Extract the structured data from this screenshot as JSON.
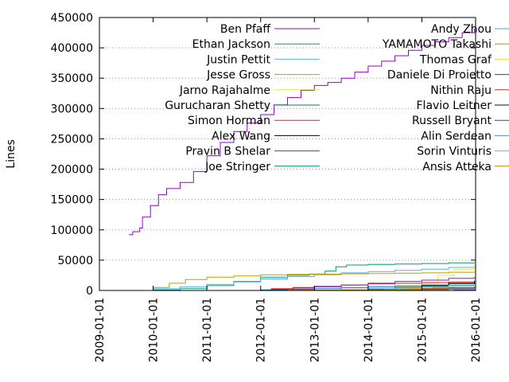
{
  "chart_data": {
    "type": "line",
    "title": "",
    "xlabel": "",
    "ylabel": "Lines",
    "xlim": [
      2009.0,
      2016.0
    ],
    "ylim": [
      0,
      450000
    ],
    "x_ticks": [
      "2009-01-01",
      "2010-01-01",
      "2011-01-01",
      "2012-01-01",
      "2013-01-01",
      "2014-01-01",
      "2015-01-01",
      "2016-01-01"
    ],
    "y_ticks": [
      0,
      50000,
      100000,
      150000,
      200000,
      250000,
      300000,
      350000,
      400000,
      450000
    ],
    "y_tick_labels": [
      "0",
      "50000",
      "100000",
      "150000",
      "200000",
      "250000",
      "300000",
      "350000",
      "400000",
      "450000"
    ],
    "grid": "horizontal dotted",
    "legend_position": "top, two columns",
    "series": [
      {
        "name": "Ben Pfaff",
        "color": "#9400d3",
        "x": [
          2009.55,
          2009.62,
          2009.75,
          2009.8,
          2009.95,
          2010.1,
          2010.25,
          2010.5,
          2010.75,
          2011.0,
          2011.25,
          2011.5,
          2011.75,
          2012.0,
          2012.25,
          2012.5,
          2012.75,
          2013.0,
          2013.25,
          2013.5,
          2013.75,
          2014.0,
          2014.25,
          2014.5,
          2014.75,
          2015.0,
          2015.25,
          2015.5,
          2015.75,
          2015.98
        ],
        "y": [
          92000,
          97000,
          103000,
          121000,
          140000,
          158000,
          168000,
          178000,
          196000,
          222000,
          244000,
          262000,
          276000,
          290000,
          306000,
          318000,
          330000,
          338000,
          343000,
          350000,
          360000,
          370000,
          378000,
          387000,
          396000,
          404000,
          410000,
          417000,
          425000,
          432000
        ]
      },
      {
        "name": "Ethan Jackson",
        "color": "#009e73",
        "x": [
          2009.5,
          2010.0,
          2010.5,
          2011.0,
          2011.5,
          2012.0,
          2012.5,
          2012.9,
          2013.2,
          2013.4,
          2013.6,
          2014.0,
          2014.5,
          2015.0,
          2015.5,
          2015.98
        ],
        "y": [
          0,
          1000,
          3000,
          8000,
          15000,
          22000,
          25000,
          27000,
          32000,
          39000,
          42000,
          43000,
          43500,
          44500,
          45500,
          46000
        ]
      },
      {
        "name": "Justin Pettit",
        "color": "#56b4e9",
        "x": [
          2009.5,
          2010.0,
          2010.5,
          2011.0,
          2011.5,
          2012.0,
          2012.5,
          2013.0,
          2013.5,
          2014.0,
          2014.5,
          2015.0,
          2015.5,
          2015.98
        ],
        "y": [
          0,
          3000,
          6000,
          10000,
          14000,
          19000,
          23000,
          26000,
          29000,
          31000,
          33000,
          35000,
          38000,
          40000
        ]
      },
      {
        "name": "Jesse Gross",
        "color": "#b8a000",
        "x": [
          2009.6,
          2010.0,
          2010.3,
          2010.6,
          2011.0,
          2011.5,
          2012.0,
          2012.5,
          2013.0,
          2013.5,
          2014.0,
          2014.5,
          2015.0,
          2015.5,
          2015.98
        ],
        "y": [
          0,
          5000,
          12000,
          18000,
          22000,
          24000,
          26000,
          26500,
          27000,
          27500,
          28000,
          28500,
          29000,
          30000,
          31000
        ]
      },
      {
        "name": "Jarno Rajahalme",
        "color": "#f0e442",
        "x": [
          2013.8,
          2014.0,
          2014.5,
          2015.0,
          2015.3,
          2015.6,
          2015.98
        ],
        "y": [
          0,
          2000,
          6000,
          12000,
          25000,
          35000,
          42000
        ]
      },
      {
        "name": "Gurucharan Shetty",
        "color": "#0072b2",
        "x": [
          2011.5,
          2012.0,
          2012.5,
          2013.0,
          2013.5,
          2014.0,
          2014.5,
          2015.0,
          2015.5,
          2015.98
        ],
        "y": [
          0,
          1000,
          2000,
          3000,
          4500,
          6000,
          7500,
          9000,
          11000,
          12000
        ]
      },
      {
        "name": "Simon Horman",
        "color": "#e51e10",
        "x": [
          2011.8,
          2012.2,
          2012.6,
          2013.0,
          2013.5,
          2014.0,
          2014.5,
          2015.0,
          2015.5,
          2015.98
        ],
        "y": [
          0,
          3000,
          5000,
          7000,
          9000,
          11000,
          12000,
          13000,
          14000,
          15000
        ]
      },
      {
        "name": "Alex Wang",
        "color": "#000000",
        "x": [
          2013.5,
          2014.0,
          2014.5,
          2015.0,
          2015.5,
          2015.98
        ],
        "y": [
          0,
          2000,
          5000,
          8000,
          12000,
          16000
        ]
      },
      {
        "name": "Pravin B Shelar",
        "color": "#8b1fb0",
        "x": [
          2011.8,
          2012.2,
          2012.6,
          2013.0,
          2013.5,
          2014.0,
          2014.5,
          2015.0,
          2015.5,
          2015.98
        ],
        "y": [
          0,
          2000,
          4000,
          6000,
          9000,
          12000,
          15000,
          17000,
          20000,
          22000
        ]
      },
      {
        "name": "Joe Stringer",
        "color": "#00876c",
        "x": [
          2013.0,
          2013.5,
          2014.0,
          2014.5,
          2015.0,
          2015.5,
          2015.98
        ],
        "y": [
          0,
          1000,
          2500,
          4000,
          6000,
          8000,
          10000
        ]
      },
      {
        "name": "Andy Zhou",
        "color": "#4aa3df",
        "x": [
          2013.2,
          2013.6,
          2014.0,
          2014.5,
          2015.0,
          2015.5,
          2015.98
        ],
        "y": [
          0,
          1000,
          3000,
          5000,
          7000,
          8500,
          9500
        ]
      },
      {
        "name": "YAMAMOTO Takashi",
        "color": "#c88a00",
        "x": [
          2013.9,
          2014.3,
          2014.8,
          2015.2,
          2015.6,
          2015.98
        ],
        "y": [
          0,
          1500,
          3500,
          5000,
          6500,
          7500
        ]
      },
      {
        "name": "Thomas Graf",
        "color": "#ece13a",
        "x": [
          2014.3,
          2014.7,
          2015.0,
          2015.5,
          2015.98
        ],
        "y": [
          0,
          2000,
          4000,
          7000,
          9000
        ]
      },
      {
        "name": "Daniele Di Proietto",
        "color": "#005a9c",
        "x": [
          2014.2,
          2014.6,
          2015.0,
          2015.5,
          2015.98
        ],
        "y": [
          0,
          1500,
          3000,
          4500,
          6000
        ]
      },
      {
        "name": "Nithin Raju",
        "color": "#d7261e",
        "x": [
          2014.0,
          2014.5,
          2015.0,
          2015.5,
          2015.98
        ],
        "y": [
          0,
          1500,
          3000,
          4000,
          5000
        ]
      },
      {
        "name": "Flavio Leitner",
        "color": "#111111",
        "x": [
          2013.5,
          2014.0,
          2014.5,
          2015.0,
          2015.5,
          2015.98
        ],
        "y": [
          0,
          500,
          1200,
          2000,
          2600,
          3000
        ]
      },
      {
        "name": "Russell Bryant",
        "color": "#7a1fa2",
        "x": [
          2015.3,
          2015.6,
          2015.98
        ],
        "y": [
          0,
          1500,
          3500
        ]
      },
      {
        "name": "Alin Serdean",
        "color": "#3d9ccf",
        "x": [
          2014.5,
          2015.0,
          2015.5,
          2015.98
        ],
        "y": [
          0,
          1500,
          3000,
          4000
        ]
      },
      {
        "name": "Sorin Vinturis",
        "color": "#5fb7e8",
        "x": [
          2014.6,
          2015.0,
          2015.5,
          2015.98
        ],
        "y": [
          0,
          1000,
          2000,
          2800
        ]
      },
      {
        "name": "Ansis Atteka",
        "color": "#b88300",
        "x": [
          2011.5,
          2012.5,
          2013.5,
          2014.5,
          2015.5,
          2015.98
        ],
        "y": [
          0,
          500,
          1000,
          1500,
          2000,
          2200
        ]
      }
    ]
  }
}
